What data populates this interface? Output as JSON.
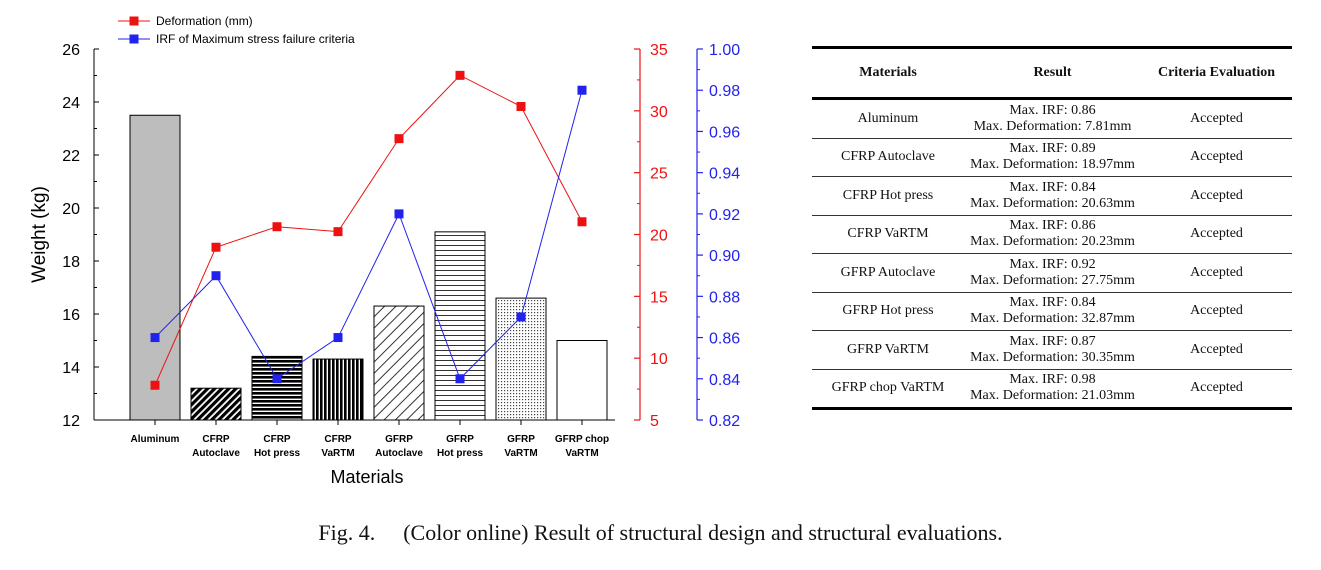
{
  "chart_data": {
    "type": "bar",
    "categories": [
      [
        "Aluminum"
      ],
      [
        "CFRP",
        "Autoclave"
      ],
      [
        "CFRP",
        "Hot press"
      ],
      [
        "CFRP",
        "VaRTM"
      ],
      [
        "GFRP",
        "Autoclave"
      ],
      [
        "GFRP",
        "Hot press"
      ],
      [
        "GFRP",
        "VaRTM"
      ],
      [
        "GFRP chop",
        "VaRTM"
      ]
    ],
    "xlabel": "Materials",
    "ylabel": "Weight (kg)",
    "ylim": [
      12,
      26
    ],
    "yticks": [
      "12",
      "14",
      "16",
      "18",
      "20",
      "22",
      "24",
      "26"
    ],
    "bars": {
      "values": [
        23.5,
        13.2,
        14.4,
        14.3,
        16.3,
        19.1,
        16.6,
        15.0
      ],
      "fills": [
        "solid-gray",
        "diag-black",
        "horiz-black",
        "vert-black",
        "diag-light",
        "horiz-light",
        "dots",
        "white"
      ]
    },
    "series": [
      {
        "name": "Deformation (mm)",
        "axis": "right-red",
        "color": "#ee1111",
        "values": [
          7.81,
          18.97,
          20.63,
          20.23,
          27.75,
          32.87,
          30.35,
          21.03
        ]
      },
      {
        "name": "IRF of Maximum stress failure criteria",
        "axis": "right-blue",
        "color": "#2222ee",
        "values": [
          0.86,
          0.89,
          0.84,
          0.86,
          0.92,
          0.84,
          0.87,
          0.98
        ]
      }
    ],
    "right_red_axis": {
      "ylim": [
        5,
        35
      ],
      "ticks": [
        "5",
        "10",
        "15",
        "20",
        "25",
        "30",
        "35"
      ]
    },
    "right_blue_axis": {
      "ylim": [
        0.82,
        1.0
      ],
      "ticks": [
        "0.82",
        "0.84",
        "0.86",
        "0.88",
        "0.90",
        "0.92",
        "0.94",
        "0.96",
        "0.98",
        "1.00"
      ]
    },
    "legend_position": "top-left"
  },
  "table": {
    "headers": [
      "Materials",
      "Result",
      "Criteria Evaluation"
    ],
    "rows": [
      {
        "material": "Aluminum",
        "irf": "Max. IRF: 0.86",
        "deformation": "Max. Deformation: 7.81mm",
        "evaluation": "Accepted"
      },
      {
        "material": "CFRP Autoclave",
        "irf": "Max. IRF: 0.89",
        "deformation": "Max. Deformation: 18.97mm",
        "evaluation": "Accepted"
      },
      {
        "material": "CFRP Hot press",
        "irf": "Max. IRF: 0.84",
        "deformation": "Max. Deformation: 20.63mm",
        "evaluation": "Accepted"
      },
      {
        "material": "CFRP VaRTM",
        "irf": "Max. IRF: 0.86",
        "deformation": "Max. Deformation: 20.23mm",
        "evaluation": "Accepted"
      },
      {
        "material": "GFRP Autoclave",
        "irf": "Max. IRF: 0.92",
        "deformation": "Max. Deformation: 27.75mm",
        "evaluation": "Accepted"
      },
      {
        "material": "GFRP Hot press",
        "irf": "Max. IRF: 0.84",
        "deformation": "Max. Deformation: 32.87mm",
        "evaluation": "Accepted"
      },
      {
        "material": "GFRP VaRTM",
        "irf": "Max. IRF: 0.87",
        "deformation": "Max. Deformation: 30.35mm",
        "evaluation": "Accepted"
      },
      {
        "material": "GFRP chop VaRTM",
        "irf": "Max. IRF: 0.98",
        "deformation": "Max. Deformation: 21.03mm",
        "evaluation": "Accepted"
      }
    ]
  },
  "caption": {
    "label": "Fig. 4.",
    "text": "(Color online) Result of structural design and structural evaluations."
  }
}
